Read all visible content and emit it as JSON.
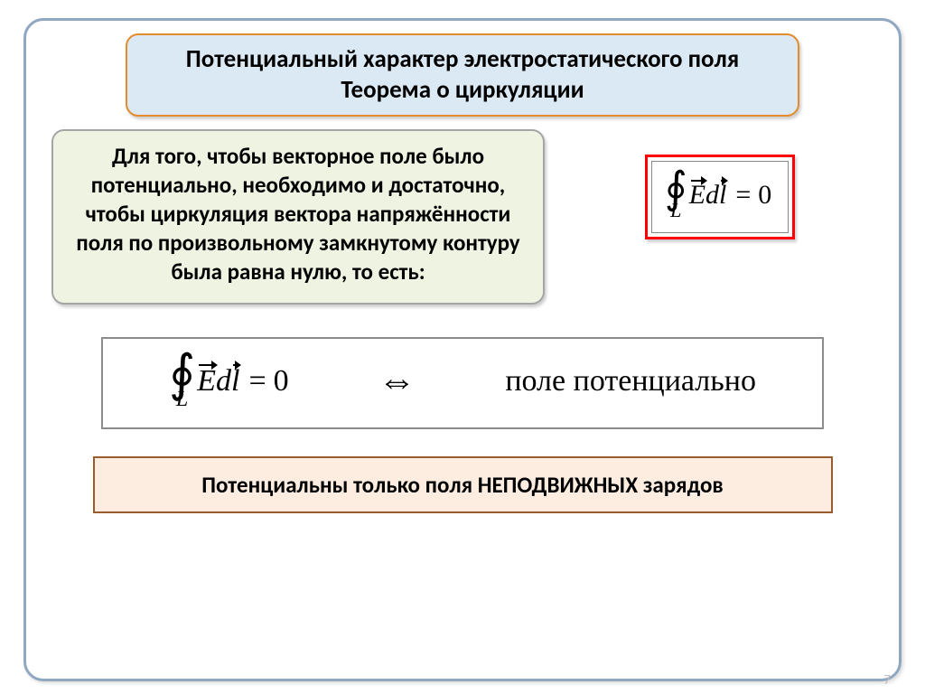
{
  "page": {
    "number": "7"
  },
  "colors": {
    "frame_border": "#8fa7c0",
    "title_bg": "#dbe9f4",
    "title_border": "#e58b2c",
    "left_bg": "#eff4e2",
    "left_border": "#a5a5a5",
    "formula_outer_border": "#ff0000",
    "big_formula_border": "#8c8c8c",
    "bottom_bg": "#fdece0",
    "bottom_border": "#9a5b2e",
    "text_main": "#000000"
  },
  "fonts": {
    "title_size": 27,
    "left_size": 25,
    "bottom_size": 25,
    "potential_size": 34
  },
  "title": {
    "line1": "Потенциальный характер электростатического поля",
    "line2": "Теорема о циркуляции"
  },
  "left_text": "Для того, чтобы векторное поле было потенциально, необходимо и достаточно, чтобы циркуляция вектора напряжённости поля по произвольному замкнутому контуру была равна нулю, то есть:",
  "formula": {
    "oint_symbol": "∮",
    "subscript": "L",
    "E": "E",
    "d": "d",
    "l": "l",
    "equals": "=",
    "zero": "0"
  },
  "iff_symbol": "⇔",
  "potential_label": "поле потенциально",
  "bottom_text_pre": "Потенциальны только поля ",
  "bottom_text_bold": "НЕПОДВИЖНЫХ",
  "bottom_text_post": " зарядов"
}
